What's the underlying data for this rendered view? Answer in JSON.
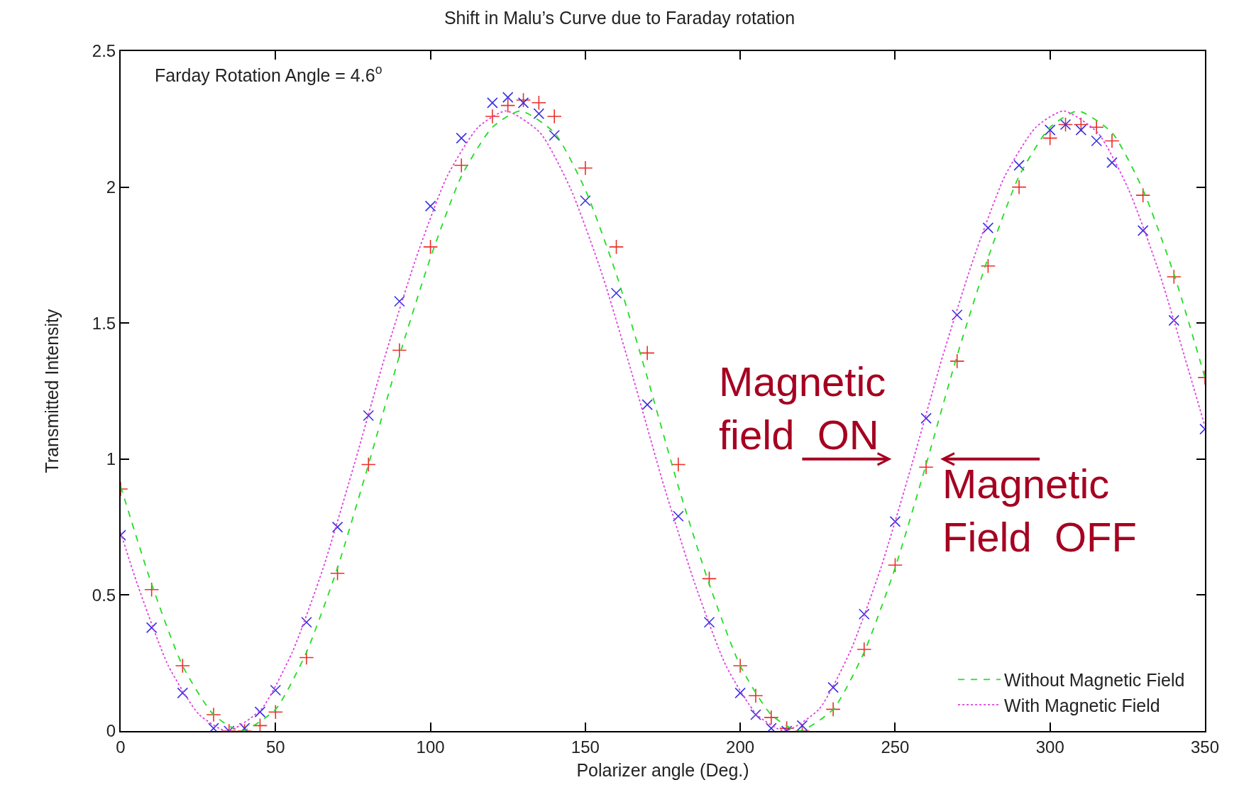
{
  "chart_data": {
    "type": "scatter",
    "title": "Shift in Malu’s Curve due to Faraday rotation",
    "xlabel": "Polarizer angle (Deg.)",
    "ylabel": "Transmitted Intensity",
    "xlim": [
      0,
      350
    ],
    "xticks": [
      0,
      50,
      100,
      150,
      200,
      250,
      300,
      350
    ],
    "ylim": [
      0,
      2.5
    ],
    "yticks": [
      0,
      0.5,
      1,
      1.5,
      2,
      2.5
    ],
    "legend": "bottom right",
    "annotations": [
      "Farday Rotation Angle = 4.6$^{o}$",
      "Magnetic\nfield  ON",
      "Magnetic\nField  OFF"
    ],
    "series": [
      {
        "color": "#e8302a",
        "marker": "cross",
        "x": [
          0,
          10,
          20,
          30,
          35,
          40,
          45,
          50,
          60,
          70,
          80,
          90,
          100,
          110,
          120,
          125,
          130,
          135,
          140,
          150,
          160,
          170,
          180,
          190,
          200,
          205,
          210,
          215,
          220,
          230,
          240,
          250,
          260,
          270,
          280,
          290,
          300,
          305,
          310,
          315,
          320,
          330,
          340,
          350
        ],
        "values": [
          0.89,
          0.52,
          0.24,
          0.06,
          0.0,
          0.0,
          0.02,
          0.07,
          0.27,
          0.58,
          0.98,
          1.4,
          1.78,
          2.08,
          2.26,
          2.3,
          2.32,
          2.31,
          2.26,
          2.07,
          1.78,
          1.39,
          0.98,
          0.56,
          0.24,
          0.13,
          0.05,
          0.01,
          0.0,
          0.08,
          0.3,
          0.61,
          0.97,
          1.36,
          1.71,
          2.0,
          2.18,
          2.23,
          2.23,
          2.22,
          2.17,
          1.97,
          1.67,
          1.3
        ]
      },
      {
        "color": "#3a30e0",
        "marker": "x",
        "x": [
          0,
          10,
          20,
          30,
          35,
          40,
          45,
          50,
          60,
          70,
          80,
          90,
          100,
          110,
          120,
          125,
          130,
          135,
          140,
          150,
          160,
          170,
          180,
          190,
          200,
          205,
          210,
          215,
          220,
          230,
          240,
          250,
          260,
          270,
          280,
          290,
          300,
          305,
          310,
          315,
          320,
          330,
          340,
          350
        ],
        "values": [
          0.72,
          0.38,
          0.14,
          0.01,
          0.0,
          0.01,
          0.07,
          0.15,
          0.4,
          0.75,
          1.16,
          1.58,
          1.93,
          2.18,
          2.31,
          2.33,
          2.31,
          2.27,
          2.19,
          1.95,
          1.61,
          1.2,
          0.79,
          0.4,
          0.14,
          0.06,
          0.01,
          0.0,
          0.02,
          0.16,
          0.43,
          0.77,
          1.15,
          1.53,
          1.85,
          2.08,
          2.21,
          2.23,
          2.21,
          2.17,
          2.09,
          1.84,
          1.51,
          1.11
        ]
      },
      {
        "type": "line",
        "name": "Without Magnetic Field",
        "color": "#22dd22",
        "line_style": "dashed",
        "x": [
          0,
          10,
          20,
          30,
          39,
          50,
          60,
          70,
          80,
          90,
          100,
          110,
          120,
          129,
          140,
          150,
          160,
          170,
          180,
          190,
          200,
          210,
          219,
          230,
          240,
          250,
          260,
          270,
          280,
          290,
          300,
          309,
          320,
          330,
          340,
          350
        ],
        "values": [
          0.9,
          0.54,
          0.24,
          0.06,
          0.0,
          0.08,
          0.29,
          0.6,
          0.98,
          1.38,
          1.74,
          2.04,
          2.22,
          2.28,
          2.2,
          1.99,
          1.68,
          1.3,
          0.9,
          0.54,
          0.24,
          0.06,
          0.0,
          0.08,
          0.29,
          0.6,
          0.98,
          1.38,
          1.74,
          2.04,
          2.22,
          2.28,
          2.2,
          1.99,
          1.68,
          1.3
        ]
      },
      {
        "type": "line",
        "name": "With Magnetic Field",
        "color": "#e040e0",
        "line_style": "dotted",
        "x": [
          0,
          5.4,
          15.4,
          25.4,
          34.4,
          45.4,
          55.4,
          65.4,
          75.4,
          85.4,
          95.4,
          105.4,
          115.4,
          124.4,
          135.4,
          145.4,
          155.4,
          165.4,
          175.4,
          185.4,
          195.4,
          205.4,
          214.4,
          225.4,
          235.4,
          245.4,
          255.4,
          265.4,
          275.4,
          285.4,
          295.4,
          304.4,
          315.4,
          325.4,
          335.4,
          345.4,
          350
        ],
        "values": [
          0.73,
          0.54,
          0.24,
          0.06,
          0.0,
          0.08,
          0.29,
          0.6,
          0.98,
          1.38,
          1.74,
          2.04,
          2.22,
          2.28,
          2.2,
          1.99,
          1.68,
          1.3,
          0.9,
          0.54,
          0.24,
          0.06,
          0.0,
          0.08,
          0.29,
          0.6,
          0.98,
          1.38,
          1.74,
          2.04,
          2.22,
          2.28,
          2.2,
          1.99,
          1.68,
          1.3,
          1.12
        ]
      }
    ]
  }
}
